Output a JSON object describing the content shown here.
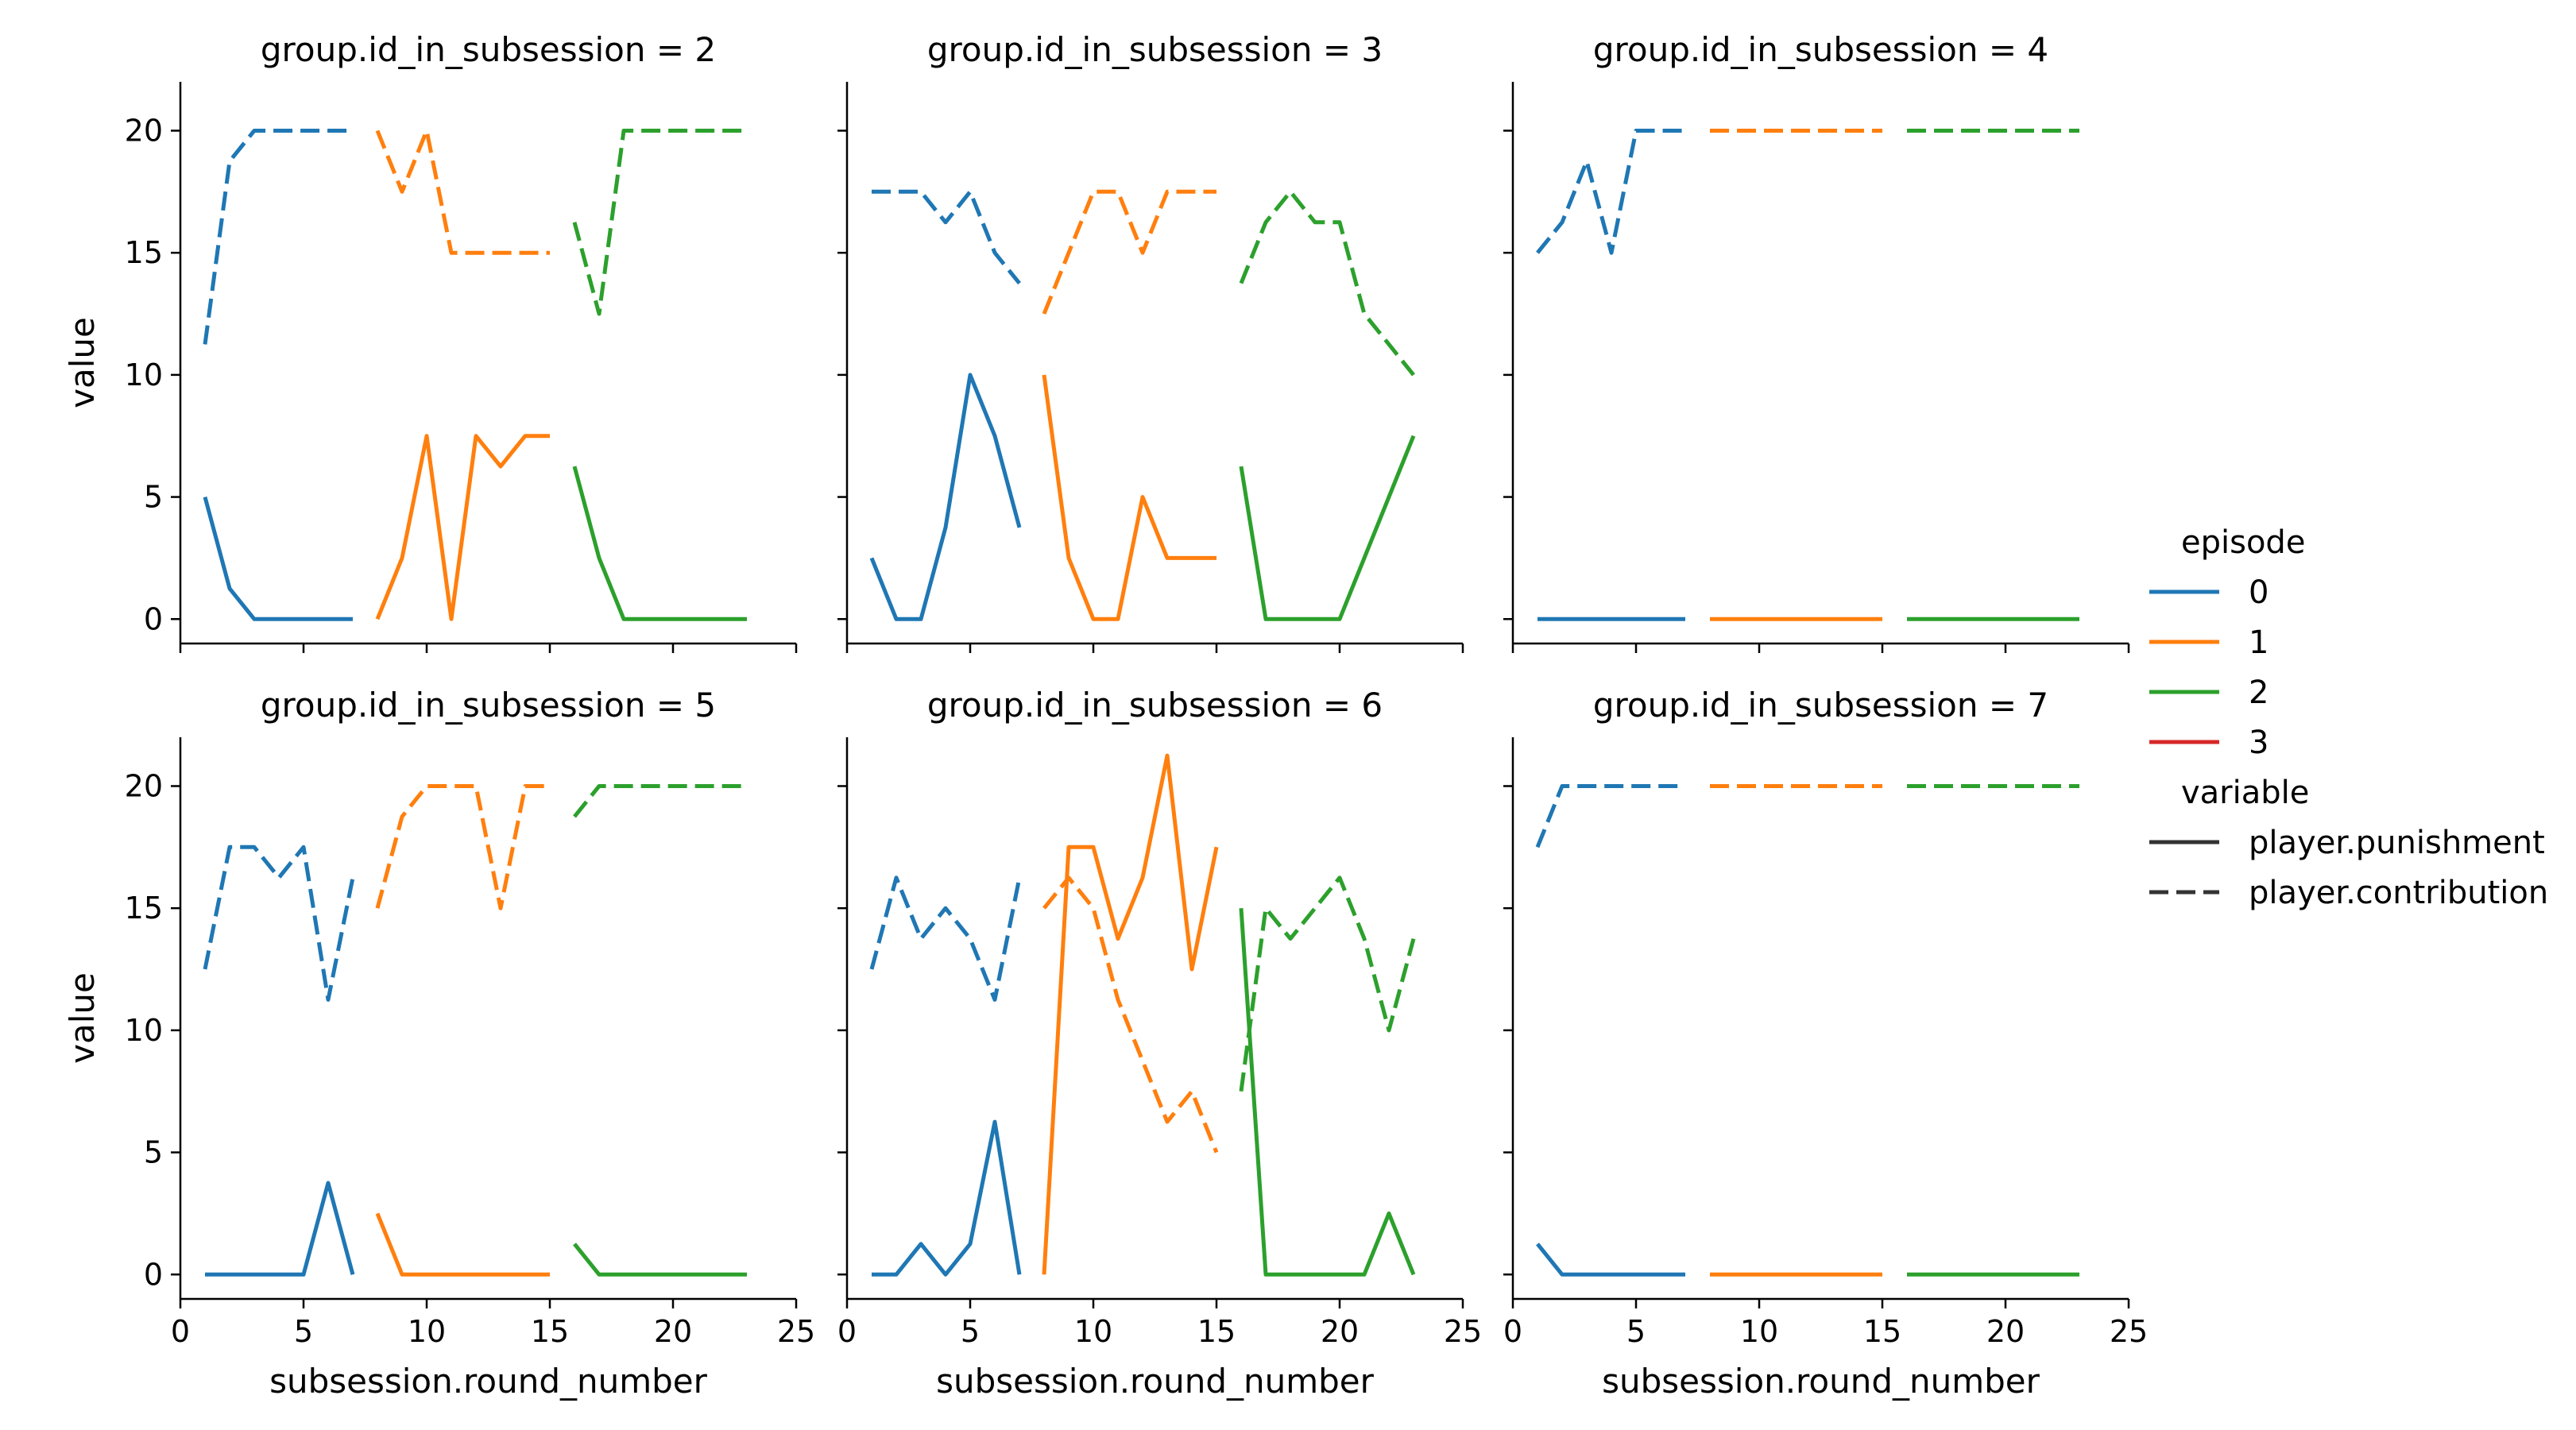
{
  "chart_data": {
    "type": "line",
    "xlabel": "subsession.round_number",
    "ylabel": "value",
    "xlim": [
      0,
      25
    ],
    "ylim": [
      -1,
      22
    ],
    "xticks": [
      0,
      5,
      10,
      15,
      20,
      25
    ],
    "yticks": [
      0,
      5,
      10,
      15,
      20
    ],
    "grid": false,
    "legend": {
      "placement": "right",
      "hue_title": "episode",
      "hue": [
        {
          "label": "0",
          "color": "#1f77b4"
        },
        {
          "label": "1",
          "color": "#ff7f0e"
        },
        {
          "label": "2",
          "color": "#2ca02c"
        },
        {
          "label": "3",
          "color": "#d62728"
        }
      ],
      "style_title": "variable",
      "styles": [
        {
          "label": "player.punishment",
          "dash": "solid"
        },
        {
          "label": "player.contribution",
          "dash": "dashed"
        }
      ]
    },
    "panels": [
      {
        "title": "group.id_in_subsession = 2",
        "series": [
          {
            "episode": 0,
            "variable": "player.punishment",
            "x": [
              1,
              2,
              3,
              4,
              5,
              6,
              7
            ],
            "y": [
              5,
              1.25,
              0,
              0,
              0,
              0,
              0
            ]
          },
          {
            "episode": 0,
            "variable": "player.contribution",
            "x": [
              1,
              2,
              3,
              4,
              5,
              6,
              7
            ],
            "y": [
              11.25,
              18.75,
              20,
              20,
              20,
              20,
              20
            ]
          },
          {
            "episode": 1,
            "variable": "player.punishment",
            "x": [
              8,
              9,
              10,
              11,
              12,
              13,
              14,
              15
            ],
            "y": [
              0,
              2.5,
              7.5,
              0,
              7.5,
              6.25,
              7.5,
              7.5
            ]
          },
          {
            "episode": 1,
            "variable": "player.contribution",
            "x": [
              8,
              9,
              10,
              11,
              12,
              13,
              14,
              15
            ],
            "y": [
              20,
              17.5,
              20,
              15,
              15,
              15,
              15,
              15
            ]
          },
          {
            "episode": 2,
            "variable": "player.punishment",
            "x": [
              16,
              17,
              18,
              19,
              20,
              21,
              22,
              23
            ],
            "y": [
              6.25,
              2.5,
              0,
              0,
              0,
              0,
              0,
              0
            ]
          },
          {
            "episode": 2,
            "variable": "player.contribution",
            "x": [
              16,
              17,
              18,
              19,
              20,
              21,
              22,
              23
            ],
            "y": [
              16.25,
              12.5,
              20,
              20,
              20,
              20,
              20,
              20
            ]
          }
        ]
      },
      {
        "title": "group.id_in_subsession = 3",
        "series": [
          {
            "episode": 0,
            "variable": "player.punishment",
            "x": [
              1,
              2,
              3,
              4,
              5,
              6,
              7
            ],
            "y": [
              2.5,
              0,
              0,
              3.75,
              10,
              7.5,
              3.75
            ]
          },
          {
            "episode": 0,
            "variable": "player.contribution",
            "x": [
              1,
              2,
              3,
              4,
              5,
              6,
              7
            ],
            "y": [
              17.5,
              17.5,
              17.5,
              16.25,
              17.5,
              15,
              13.75
            ]
          },
          {
            "episode": 1,
            "variable": "player.punishment",
            "x": [
              8,
              9,
              10,
              11,
              12,
              13,
              14,
              15
            ],
            "y": [
              10,
              2.5,
              0,
              0,
              5,
              2.5,
              2.5,
              2.5
            ]
          },
          {
            "episode": 1,
            "variable": "player.contribution",
            "x": [
              8,
              9,
              10,
              11,
              12,
              13,
              14,
              15
            ],
            "y": [
              12.5,
              15,
              17.5,
              17.5,
              15,
              17.5,
              17.5,
              17.5
            ]
          },
          {
            "episode": 2,
            "variable": "player.punishment",
            "x": [
              16,
              17,
              18,
              19,
              20,
              21,
              22,
              23
            ],
            "y": [
              6.25,
              0,
              0,
              0,
              0,
              2.5,
              5,
              7.5
            ]
          },
          {
            "episode": 2,
            "variable": "player.contribution",
            "x": [
              16,
              17,
              18,
              19,
              20,
              21,
              22,
              23
            ],
            "y": [
              13.75,
              16.25,
              17.5,
              16.25,
              16.25,
              12.5,
              11.25,
              10
            ]
          }
        ]
      },
      {
        "title": "group.id_in_subsession = 4",
        "series": [
          {
            "episode": 0,
            "variable": "player.punishment",
            "x": [
              1,
              2,
              3,
              4,
              5,
              6,
              7
            ],
            "y": [
              0,
              0,
              0,
              0,
              0,
              0,
              0
            ]
          },
          {
            "episode": 0,
            "variable": "player.contribution",
            "x": [
              1,
              2,
              3,
              4,
              5,
              6,
              7
            ],
            "y": [
              15,
              16.25,
              18.75,
              15,
              20,
              20,
              20
            ]
          },
          {
            "episode": 1,
            "variable": "player.punishment",
            "x": [
              8,
              9,
              10,
              11,
              12,
              13,
              14,
              15
            ],
            "y": [
              0,
              0,
              0,
              0,
              0,
              0,
              0,
              0
            ]
          },
          {
            "episode": 1,
            "variable": "player.contribution",
            "x": [
              8,
              9,
              10,
              11,
              12,
              13,
              14,
              15
            ],
            "y": [
              20,
              20,
              20,
              20,
              20,
              20,
              20,
              20
            ]
          },
          {
            "episode": 2,
            "variable": "player.punishment",
            "x": [
              16,
              17,
              18,
              19,
              20,
              21,
              22,
              23
            ],
            "y": [
              0,
              0,
              0,
              0,
              0,
              0,
              0,
              0
            ]
          },
          {
            "episode": 2,
            "variable": "player.contribution",
            "x": [
              16,
              17,
              18,
              19,
              20,
              21,
              22,
              23
            ],
            "y": [
              20,
              20,
              20,
              20,
              20,
              20,
              20,
              20
            ]
          }
        ]
      },
      {
        "title": "group.id_in_subsession = 5",
        "series": [
          {
            "episode": 0,
            "variable": "player.punishment",
            "x": [
              1,
              2,
              3,
              4,
              5,
              6,
              7
            ],
            "y": [
              0,
              0,
              0,
              0,
              0,
              3.75,
              0
            ]
          },
          {
            "episode": 0,
            "variable": "player.contribution",
            "x": [
              1,
              2,
              3,
              4,
              5,
              6,
              7
            ],
            "y": [
              12.5,
              17.5,
              17.5,
              16.25,
              17.5,
              11.25,
              16.25
            ]
          },
          {
            "episode": 1,
            "variable": "player.punishment",
            "x": [
              8,
              9,
              10,
              11,
              12,
              13,
              14,
              15
            ],
            "y": [
              2.5,
              0,
              0,
              0,
              0,
              0,
              0,
              0
            ]
          },
          {
            "episode": 1,
            "variable": "player.contribution",
            "x": [
              8,
              9,
              10,
              11,
              12,
              13,
              14,
              15
            ],
            "y": [
              15,
              18.75,
              20,
              20,
              20,
              15,
              20,
              20
            ]
          },
          {
            "episode": 2,
            "variable": "player.punishment",
            "x": [
              16,
              17,
              18,
              19,
              20,
              21,
              22,
              23
            ],
            "y": [
              1.25,
              0,
              0,
              0,
              0,
              0,
              0,
              0
            ]
          },
          {
            "episode": 2,
            "variable": "player.contribution",
            "x": [
              16,
              17,
              18,
              19,
              20,
              21,
              22,
              23
            ],
            "y": [
              18.75,
              20,
              20,
              20,
              20,
              20,
              20,
              20
            ]
          }
        ]
      },
      {
        "title": "group.id_in_subsession = 6",
        "series": [
          {
            "episode": 0,
            "variable": "player.punishment",
            "x": [
              1,
              2,
              3,
              4,
              5,
              6,
              7
            ],
            "y": [
              0,
              0,
              1.25,
              0,
              1.25,
              6.25,
              0
            ]
          },
          {
            "episode": 0,
            "variable": "player.contribution",
            "x": [
              1,
              2,
              3,
              4,
              5,
              6,
              7
            ],
            "y": [
              12.5,
              16.25,
              13.75,
              15,
              13.75,
              11.25,
              16.25
            ]
          },
          {
            "episode": 1,
            "variable": "player.punishment",
            "x": [
              8,
              9,
              10,
              11,
              12,
              13,
              14,
              15
            ],
            "y": [
              0,
              17.5,
              17.5,
              13.75,
              16.25,
              21.25,
              12.5,
              17.5
            ]
          },
          {
            "episode": 1,
            "variable": "player.contribution",
            "x": [
              8,
              9,
              10,
              11,
              12,
              13,
              14,
              15
            ],
            "y": [
              15,
              16.25,
              15,
              11.25,
              8.75,
              6.25,
              7.5,
              5
            ]
          },
          {
            "episode": 2,
            "variable": "player.punishment",
            "x": [
              16,
              17,
              18,
              19,
              20,
              21,
              22,
              23
            ],
            "y": [
              15,
              0,
              0,
              0,
              0,
              0,
              2.5,
              0
            ]
          },
          {
            "episode": 2,
            "variable": "player.contribution",
            "x": [
              16,
              17,
              18,
              19,
              20,
              21,
              22,
              23
            ],
            "y": [
              7.5,
              15,
              13.75,
              15,
              16.25,
              13.75,
              10,
              13.75
            ]
          }
        ]
      },
      {
        "title": "group.id_in_subsession = 7",
        "series": [
          {
            "episode": 0,
            "variable": "player.punishment",
            "x": [
              1,
              2,
              3,
              4,
              5,
              6,
              7
            ],
            "y": [
              1.25,
              0,
              0,
              0,
              0,
              0,
              0
            ]
          },
          {
            "episode": 0,
            "variable": "player.contribution",
            "x": [
              1,
              2,
              3,
              4,
              5,
              6,
              7
            ],
            "y": [
              17.5,
              20,
              20,
              20,
              20,
              20,
              20
            ]
          },
          {
            "episode": 1,
            "variable": "player.punishment",
            "x": [
              8,
              9,
              10,
              11,
              12,
              13,
              14,
              15
            ],
            "y": [
              0,
              0,
              0,
              0,
              0,
              0,
              0,
              0
            ]
          },
          {
            "episode": 1,
            "variable": "player.contribution",
            "x": [
              8,
              9,
              10,
              11,
              12,
              13,
              14,
              15
            ],
            "y": [
              20,
              20,
              20,
              20,
              20,
              20,
              20,
              20
            ]
          },
          {
            "episode": 2,
            "variable": "player.punishment",
            "x": [
              16,
              17,
              18,
              19,
              20,
              21,
              22,
              23
            ],
            "y": [
              0,
              0,
              0,
              0,
              0,
              0,
              0,
              0
            ]
          },
          {
            "episode": 2,
            "variable": "player.contribution",
            "x": [
              16,
              17,
              18,
              19,
              20,
              21,
              22,
              23
            ],
            "y": [
              20,
              20,
              20,
              20,
              20,
              20,
              20,
              20
            ]
          }
        ]
      }
    ]
  }
}
